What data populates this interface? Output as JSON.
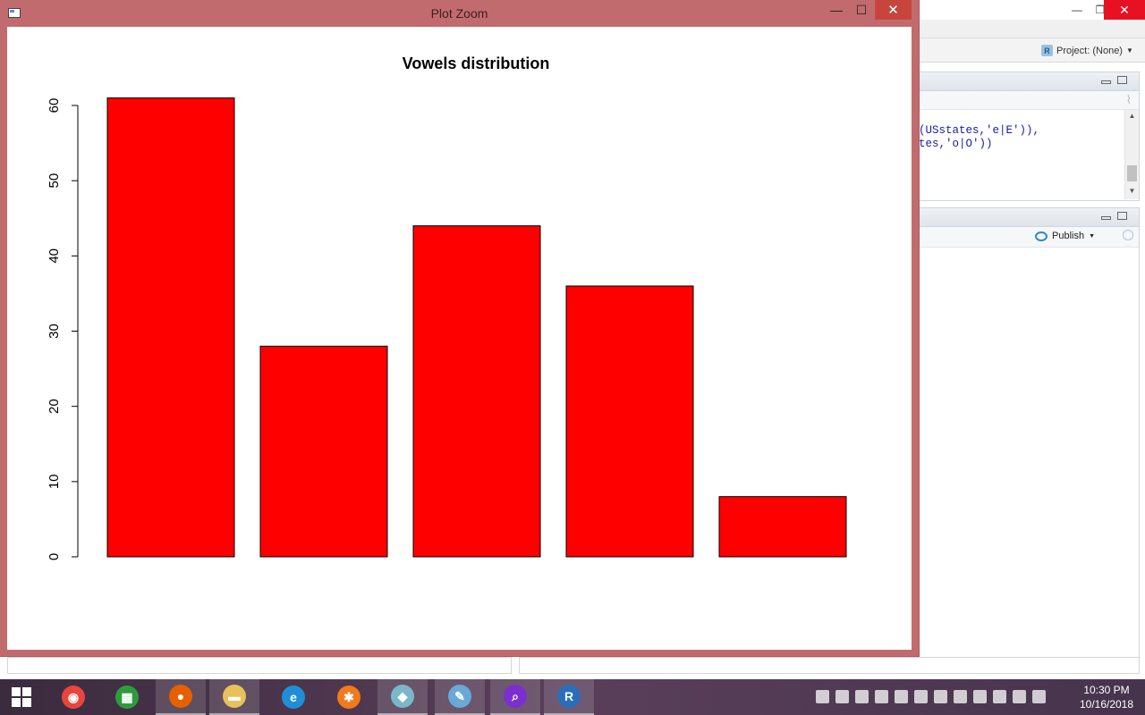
{
  "plot_window": {
    "title": "Plot Zoom",
    "minimize_glyph": "—",
    "maximize_glyph": "☐",
    "close_glyph": "✕"
  },
  "chart_data": {
    "type": "bar",
    "title": "Vowels distribution",
    "xlabel": "",
    "ylabel": "",
    "categories": [
      "",
      "",
      "",
      "",
      ""
    ],
    "values": [
      61,
      28,
      44,
      36,
      8
    ],
    "ylim": [
      0,
      60
    ],
    "yticks": [
      0,
      10,
      20,
      30,
      40,
      50,
      60
    ],
    "bar_color": "#ff0000",
    "bar_border_color": "#000000",
    "grid": false,
    "legend": "none"
  },
  "rstudio": {
    "project_label": "Project: (None)",
    "code_lines": [
      "(USstates,'e|E')),",
      "tes,'o|O'))"
    ],
    "publish_label": "Publish",
    "minimize_glyph": "—",
    "restore_glyph": "❐",
    "close_glyph": "✕"
  },
  "taskbar": {
    "apps": [
      {
        "name": "chrome",
        "color": "#e8453c",
        "glyph": "◉"
      },
      {
        "name": "store",
        "color": "#2d9c3c",
        "glyph": "▦"
      },
      {
        "name": "firefox",
        "color": "#e66000",
        "glyph": "●"
      },
      {
        "name": "file-explorer",
        "color": "#e8c15a",
        "glyph": "▬"
      },
      {
        "name": "internet-explorer",
        "color": "#1e8fd6",
        "glyph": "e"
      },
      {
        "name": "app-orange",
        "color": "#f07a1c",
        "glyph": "✱"
      },
      {
        "name": "app-notes",
        "color": "#7ab7c9",
        "glyph": "◆"
      },
      {
        "name": "paint",
        "color": "#6aa8d8",
        "glyph": "✎"
      },
      {
        "name": "search-app",
        "color": "#7b2fd0",
        "glyph": "⌕"
      },
      {
        "name": "r",
        "color": "#2a6ebb",
        "glyph": "R"
      }
    ],
    "time": "10:30 PM",
    "date": "10/16/2018"
  }
}
